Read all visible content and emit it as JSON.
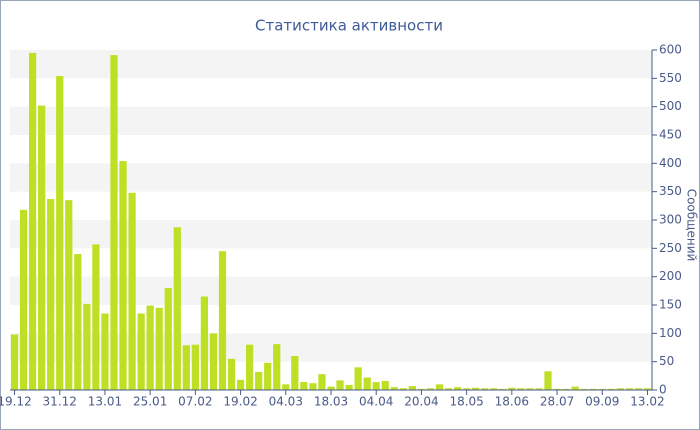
{
  "chart_data": {
    "type": "bar",
    "title": "Статистика активности",
    "y_axis_label": "Сообщений",
    "categories": [
      "19.12",
      null,
      null,
      null,
      null,
      "31.12",
      null,
      null,
      null,
      null,
      "13.01",
      null,
      null,
      null,
      null,
      "25.01",
      null,
      null,
      null,
      null,
      "07.02",
      null,
      null,
      null,
      null,
      "19.02",
      null,
      null,
      null,
      null,
      "04.03",
      null,
      null,
      null,
      null,
      "18.03",
      null,
      null,
      null,
      null,
      "04.04",
      null,
      null,
      null,
      null,
      "20.04",
      null,
      null,
      null,
      null,
      "18.05",
      null,
      null,
      null,
      null,
      "18.06",
      null,
      null,
      null,
      null,
      "28.07",
      null,
      null,
      null,
      null,
      "09.09",
      null,
      null,
      null,
      null,
      "13.02"
    ],
    "values": [
      98,
      318,
      595,
      502,
      337,
      554,
      335,
      240,
      152,
      257,
      135,
      591,
      404,
      348,
      135,
      149,
      145,
      180,
      287,
      79,
      80,
      165,
      100,
      245,
      55,
      18,
      80,
      32,
      48,
      81,
      10,
      60,
      14,
      12,
      28,
      6,
      17,
      9,
      40,
      22,
      14,
      16,
      5,
      3,
      7,
      2,
      3,
      10,
      3,
      5,
      3,
      4,
      3,
      3,
      2,
      4,
      3,
      3,
      3,
      33,
      2,
      2,
      6,
      2,
      2,
      2,
      2,
      3,
      3,
      3,
      3
    ],
    "color": "#bde024",
    "ylim": [
      0,
      600
    ],
    "yticks": [
      0,
      50,
      100,
      150,
      200,
      250,
      300,
      350,
      400,
      450,
      500,
      550,
      600
    ],
    "grid": true
  }
}
